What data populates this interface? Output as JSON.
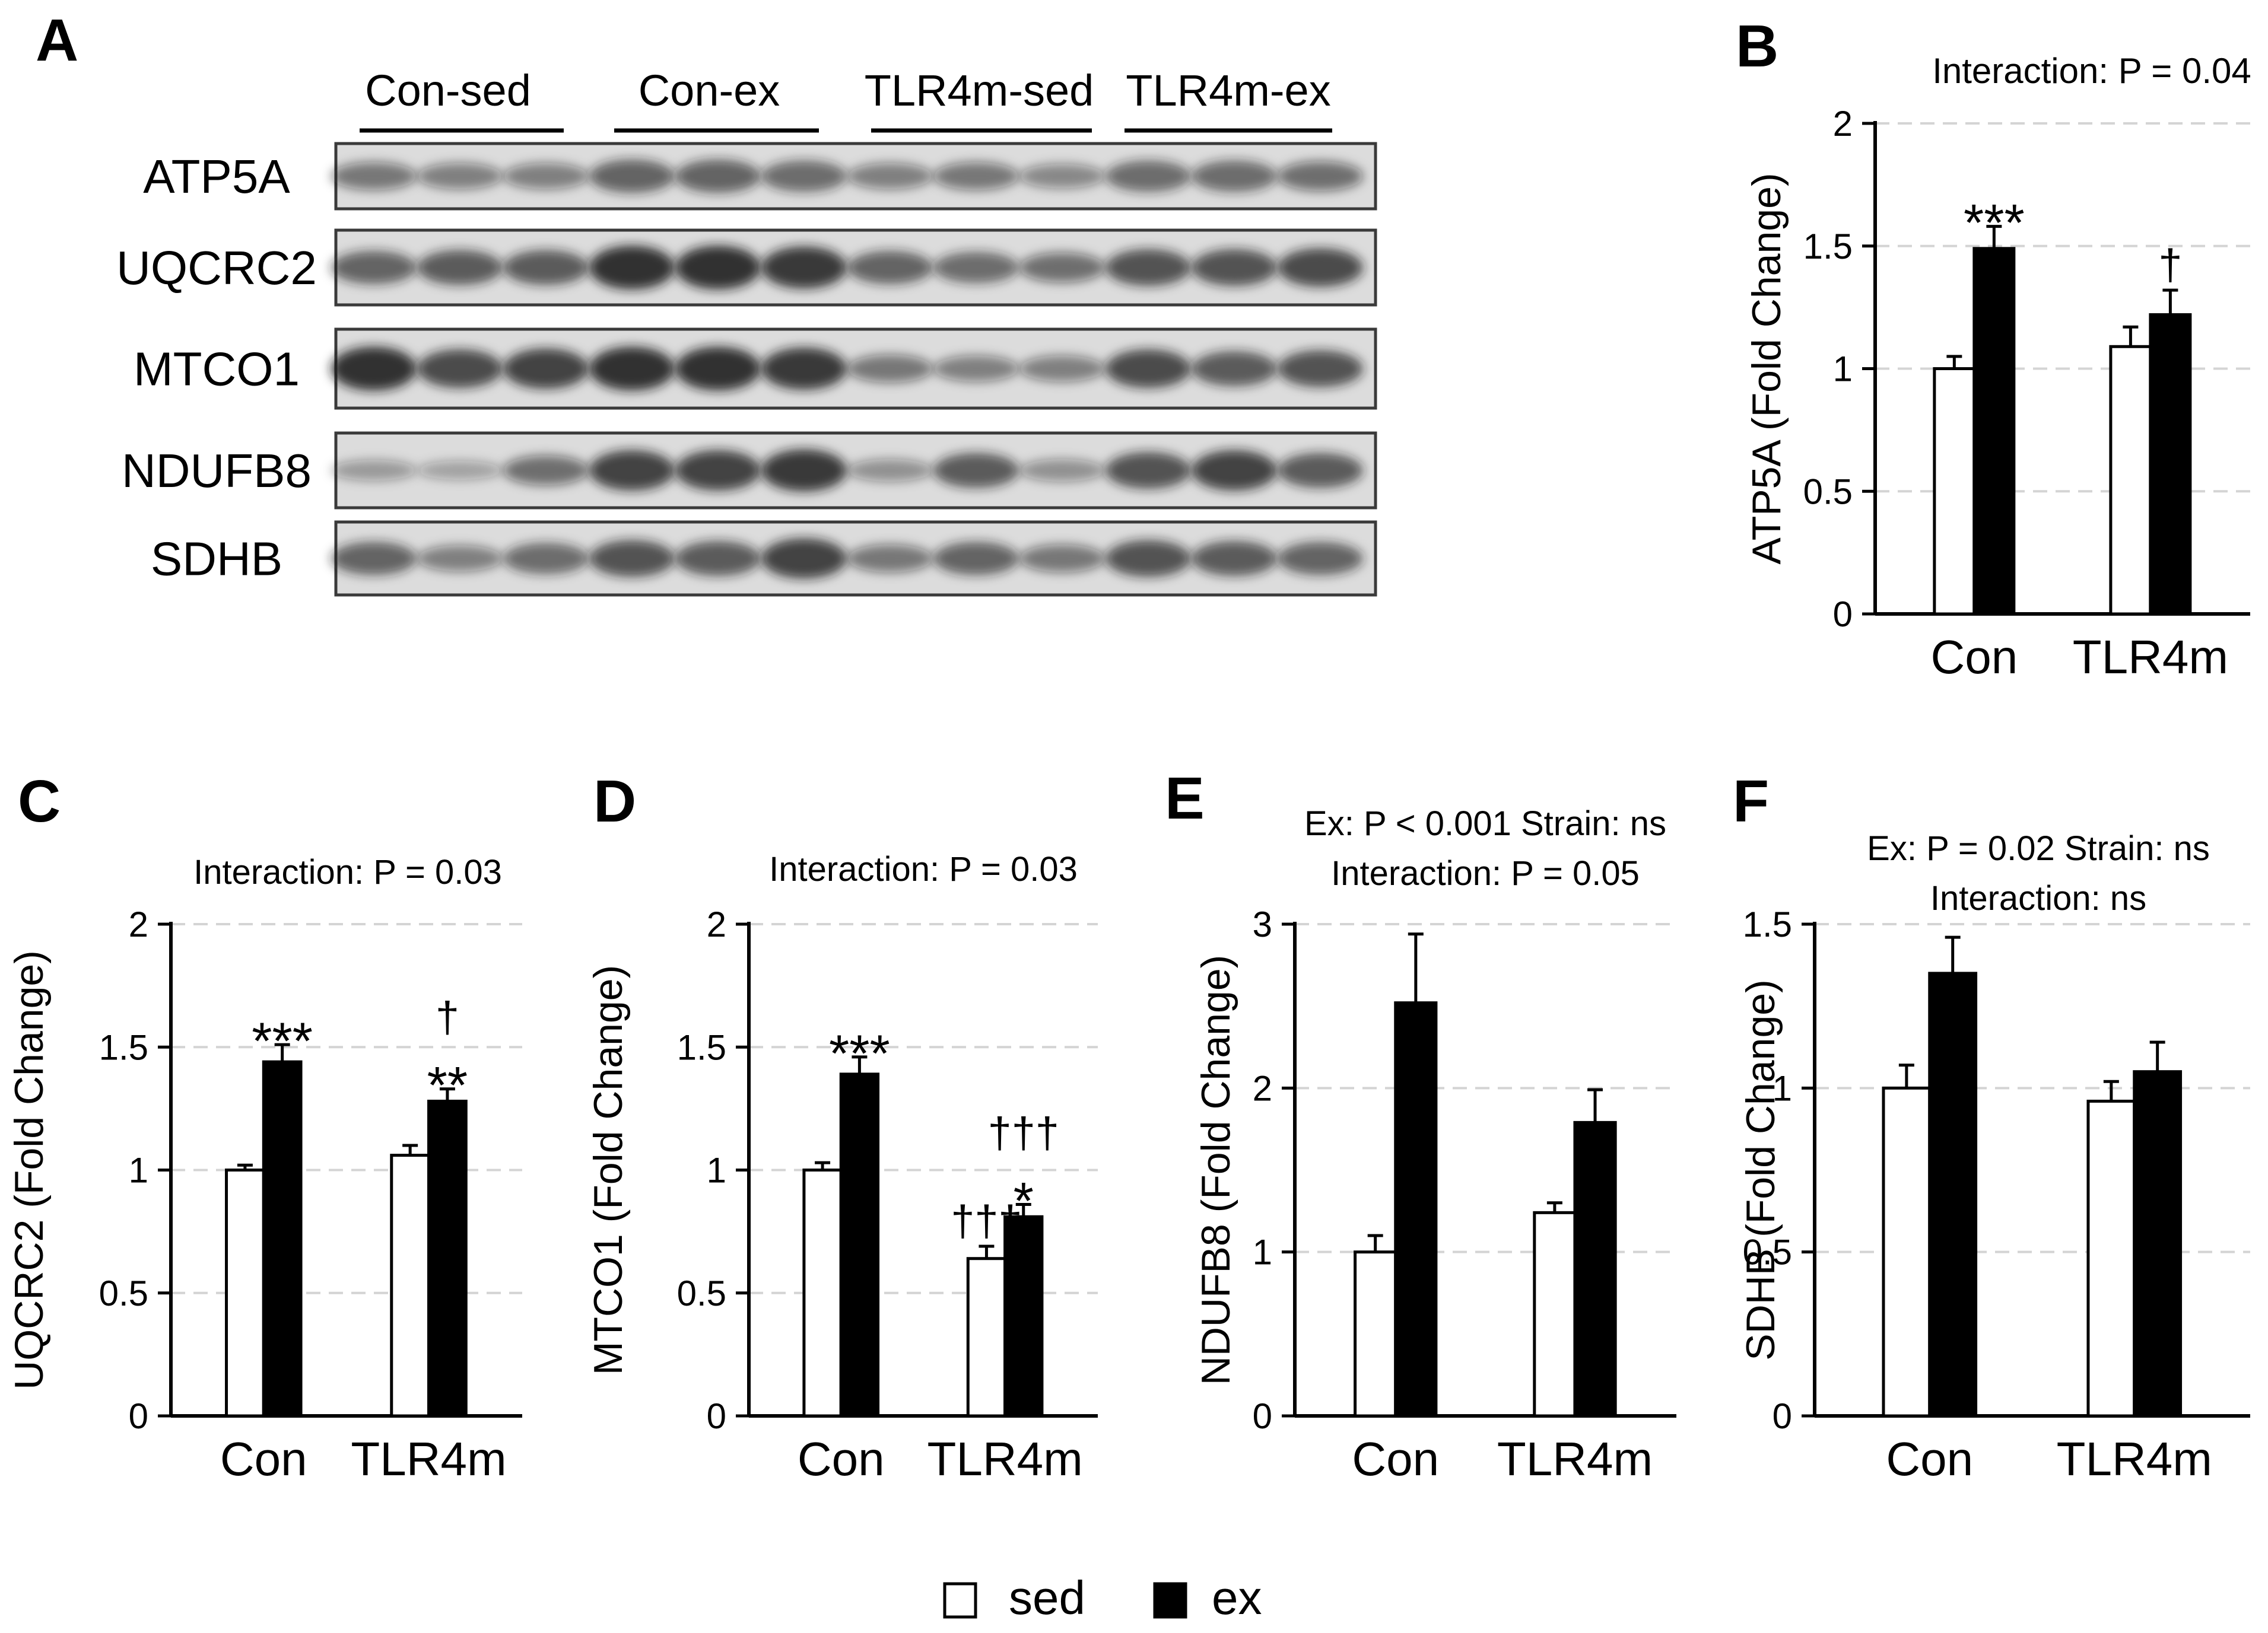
{
  "colors": {
    "sed": "#ffffff",
    "ex": "#000000",
    "grid": "#d4d4d4",
    "band": "#1a1a1a",
    "blot_bg": "#dcdcdc"
  },
  "blot": {
    "panel_label": "A",
    "groups": [
      "Con-sed",
      "Con-ex",
      "TLR4m-sed",
      "TLR4m-ex"
    ],
    "proteins": [
      {
        "name": "ATP5A",
        "intensity": [
          0.45,
          0.4,
          0.4,
          0.6,
          0.6,
          0.55,
          0.4,
          0.45,
          0.35,
          0.55,
          0.55,
          0.5
        ]
      },
      {
        "name": "UQCRC2",
        "intensity": [
          0.6,
          0.65,
          0.65,
          0.9,
          0.9,
          0.85,
          0.6,
          0.55,
          0.5,
          0.7,
          0.7,
          0.75
        ]
      },
      {
        "name": "MTCO1",
        "intensity": [
          0.9,
          0.75,
          0.8,
          0.9,
          0.9,
          0.85,
          0.45,
          0.4,
          0.4,
          0.75,
          0.65,
          0.7
        ]
      },
      {
        "name": "NDUFB8",
        "intensity": [
          0.25,
          0.2,
          0.5,
          0.8,
          0.8,
          0.85,
          0.3,
          0.65,
          0.3,
          0.7,
          0.8,
          0.65
        ]
      },
      {
        "name": "SDHB",
        "intensity": [
          0.6,
          0.4,
          0.55,
          0.7,
          0.65,
          0.8,
          0.45,
          0.6,
          0.45,
          0.7,
          0.65,
          0.6
        ]
      }
    ]
  },
  "legend": {
    "sed_label": "sed",
    "ex_label": "ex"
  },
  "chart_data": [
    {
      "panel": "B",
      "type": "bar",
      "categories": [
        "Con",
        "TLR4m"
      ],
      "series": [
        {
          "name": "sed",
          "values": [
            1.0,
            1.09
          ],
          "errors": [
            0.05,
            0.08
          ]
        },
        {
          "name": "ex",
          "values": [
            1.49,
            1.22
          ],
          "errors": [
            0.09,
            0.1
          ]
        }
      ],
      "ylabel": "ATP5A (Fold Change)",
      "ylim": [
        0,
        2
      ],
      "yticks": [
        0,
        0.5,
        1,
        1.5,
        2
      ],
      "ytick_labels": [
        "0",
        "0.5",
        "1",
        "1.5",
        "2"
      ],
      "grid": true,
      "header_lines": [
        "Interaction: P = 0.04"
      ],
      "annotations": [
        {
          "category": 0,
          "series": 1,
          "lines": [
            "***"
          ]
        },
        {
          "category": 1,
          "series": 1,
          "lines": [
            "†"
          ]
        }
      ]
    },
    {
      "panel": "C",
      "type": "bar",
      "categories": [
        "Con",
        "TLR4m"
      ],
      "series": [
        {
          "name": "sed",
          "values": [
            1.0,
            1.06
          ],
          "errors": [
            0.02,
            0.04
          ]
        },
        {
          "name": "ex",
          "values": [
            1.44,
            1.28
          ],
          "errors": [
            0.07,
            0.05
          ]
        }
      ],
      "ylabel": "UQCRC2 (Fold Change)",
      "ylim": [
        0,
        2
      ],
      "yticks": [
        0,
        0.5,
        1,
        1.5,
        2
      ],
      "ytick_labels": [
        "0",
        "0.5",
        "1",
        "1.5",
        "2"
      ],
      "grid": true,
      "header_lines": [
        "Interaction: P = 0.03"
      ],
      "annotations": [
        {
          "category": 0,
          "series": 1,
          "lines": [
            "***"
          ]
        },
        {
          "category": 1,
          "series": 1,
          "lines": [
            "†",
            "**"
          ]
        }
      ]
    },
    {
      "panel": "D",
      "type": "bar",
      "categories": [
        "Con",
        "TLR4m"
      ],
      "series": [
        {
          "name": "sed",
          "values": [
            1.0,
            0.64
          ],
          "errors": [
            0.03,
            0.05
          ]
        },
        {
          "name": "ex",
          "values": [
            1.39,
            0.81
          ],
          "errors": [
            0.07,
            0.05
          ]
        }
      ],
      "ylabel": "MTCO1 (Fold Change)",
      "ylim": [
        0,
        2
      ],
      "yticks": [
        0,
        0.5,
        1,
        1.5,
        2
      ],
      "ytick_labels": [
        "0",
        "0.5",
        "1",
        "1.5",
        "2"
      ],
      "grid": true,
      "header_lines": [
        "Interaction: P = 0.03"
      ],
      "annotations": [
        {
          "category": 0,
          "series": 1,
          "lines": [
            "***"
          ]
        },
        {
          "category": 1,
          "series": 0,
          "lines": [
            "†††"
          ]
        },
        {
          "category": 1,
          "series": 1,
          "lines": [
            "†††",
            "*"
          ]
        }
      ]
    },
    {
      "panel": "E",
      "type": "bar",
      "categories": [
        "Con",
        "TLR4m"
      ],
      "series": [
        {
          "name": "sed",
          "values": [
            1.0,
            1.24
          ],
          "errors": [
            0.1,
            0.06
          ]
        },
        {
          "name": "ex",
          "values": [
            2.52,
            1.79
          ],
          "errors": [
            0.42,
            0.2
          ]
        }
      ],
      "ylabel": "NDUFB8 (Fold Change)",
      "ylim": [
        0,
        3
      ],
      "yticks": [
        0,
        1,
        2,
        3
      ],
      "ytick_labels": [
        "0",
        "1",
        "2",
        "3"
      ],
      "grid": true,
      "header_lines": [
        "Ex: P < 0.001  Strain: ns",
        "Interaction: P = 0.05"
      ],
      "annotations": []
    },
    {
      "panel": "F",
      "type": "bar",
      "categories": [
        "Con",
        "TLR4m"
      ],
      "series": [
        {
          "name": "sed",
          "values": [
            1.0,
            0.96
          ],
          "errors": [
            0.07,
            0.06
          ]
        },
        {
          "name": "ex",
          "values": [
            1.35,
            1.05
          ],
          "errors": [
            0.11,
            0.09
          ]
        }
      ],
      "ylabel": "SDHB (Fold Change)",
      "ylim": [
        0,
        1.5
      ],
      "yticks": [
        0,
        0.5,
        1,
        1.5
      ],
      "ytick_labels": [
        "0",
        "0.5",
        "1",
        "1.5"
      ],
      "grid": true,
      "header_lines": [
        "Ex: P = 0.02  Strain: ns",
        "Interaction: ns"
      ],
      "annotations": []
    }
  ]
}
